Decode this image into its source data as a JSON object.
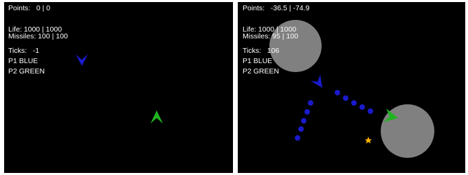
{
  "panels": [
    {
      "points": "Points:   0 | 0",
      "life": "Life: 1000 | 1000",
      "missiles": "Missiles: 100 | 100",
      "ticks": "Ticks:   -1",
      "p1": "P1 BLUE",
      "p2": "P2 GREEN"
    },
    {
      "points": "Points:   -36.5 | -74.9",
      "life": "Life: 1000 | 1000",
      "missiles": "Missiles: 95 | 100",
      "ticks": "Ticks:   106",
      "p1": "P1 BLUE",
      "p2": "P2 GREEN"
    }
  ]
}
